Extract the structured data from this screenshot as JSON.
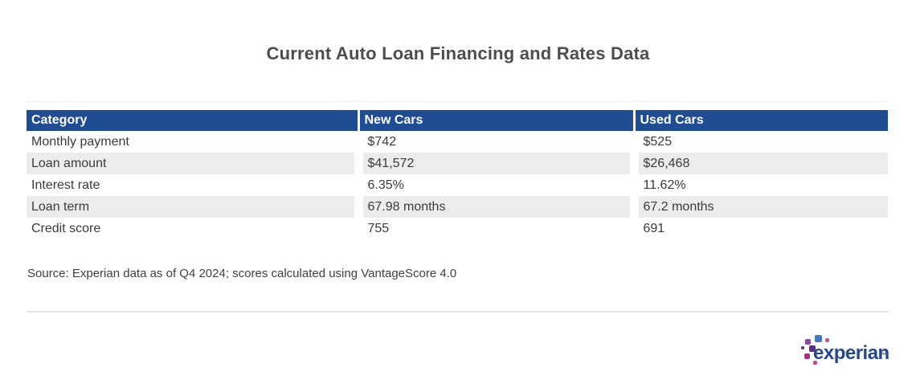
{
  "title": "Current Auto Loan Financing and Rates Data",
  "table": {
    "columns": [
      "Category",
      "New Cars",
      "Used Cars"
    ],
    "rows": [
      {
        "category": "Monthly payment",
        "new_cars": "$742",
        "used_cars": "$525"
      },
      {
        "category": "Loan amount",
        "new_cars": "$41,572",
        "used_cars": "$26,468"
      },
      {
        "category": "Interest rate",
        "new_cars": "6.35%",
        "used_cars": "11.62%"
      },
      {
        "category": "Loan term",
        "new_cars": "67.98 months",
        "used_cars": "67.2 months"
      },
      {
        "category": "Credit score",
        "new_cars": "755",
        "used_cars": "691"
      }
    ]
  },
  "source_note": "Source: Experian data as of Q4 2024; scores calculated using VantageScore 4.0",
  "footer": {
    "logo_text": "experian",
    "trademark": "™"
  },
  "colors": {
    "header_blue": "#1f4d94",
    "row_stripe_gray": "#ececec",
    "title_gray": "#4d4d4d",
    "body_text": "#3a3a3a",
    "logo_navy": "#26478d",
    "logo_light_blue": "#4779bd",
    "logo_purple": "#8a4a9e",
    "logo_violet": "#5d2f7e",
    "logo_magenta": "#b12d88",
    "logo_pink": "#c84397"
  }
}
